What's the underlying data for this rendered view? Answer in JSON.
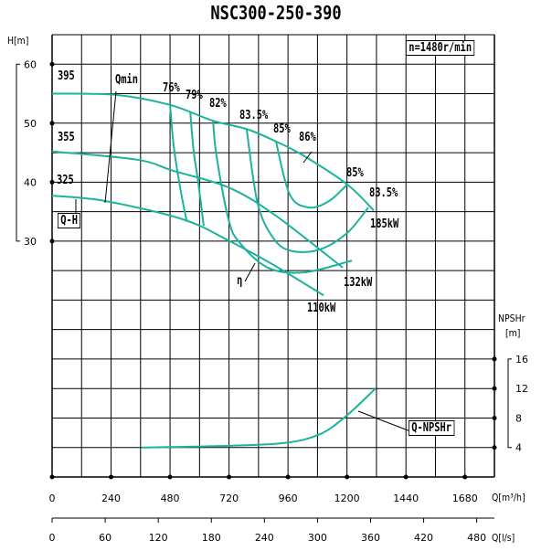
{
  "chart_data": {
    "type": "line",
    "title": "NSC300-250-390",
    "speed_label": "n=1480r/min",
    "colors": {
      "curve": "#1bb39b",
      "grid": "#000000"
    },
    "grid": true,
    "x_axis": {
      "label": "Q[m³/h]",
      "range": [
        0,
        1800
      ],
      "ticks": [
        "0",
        "240",
        "480",
        "720",
        "960",
        "1200",
        "1440",
        "1680"
      ]
    },
    "x2_axis": {
      "label": "Q[l/s]",
      "range": [
        0,
        500
      ],
      "ticks": [
        "0",
        "60",
        "120",
        "180",
        "240",
        "300",
        "360",
        "420",
        "480"
      ]
    },
    "y_axis": {
      "label": "H[m]",
      "range": [
        -10,
        65
      ],
      "ticks": [
        "60",
        "50",
        "40",
        "30"
      ]
    },
    "y2_axis": {
      "label": "NPSHr",
      "unit": "[m]",
      "range": [
        0,
        60
      ],
      "ticks": [
        "16",
        "12",
        "8",
        "4"
      ]
    },
    "qh_label": "Q-H",
    "npsh_label": "Q-NPSHr",
    "qmin_label": "Qmin",
    "eta_label": "η",
    "head_curves": [
      {
        "name": "395",
        "power": "185kW",
        "q": [
          0,
          260,
          480,
          655,
          792,
          911,
          1023,
          1201,
          1309
        ],
        "h": [
          55,
          54.8,
          53.1,
          50.4,
          49,
          46.9,
          44.5,
          39.6,
          35.2
        ]
      },
      {
        "name": "355",
        "power": "132kW",
        "q": [
          0,
          346,
          495,
          718,
          904,
          1183
        ],
        "h": [
          45.2,
          43.8,
          41.9,
          39.1,
          34.5,
          25.5
        ]
      },
      {
        "name": "325",
        "power": "110kW",
        "q": [
          0,
          216,
          532,
          718,
          904,
          1105
        ],
        "h": [
          37.7,
          36.8,
          33.7,
          30.1,
          25.9,
          20.8
        ]
      }
    ],
    "efficiency_curves": [
      {
        "name": "76%",
        "q": [
          480,
          495,
          521,
          547
        ],
        "h": [
          53.1,
          46.1,
          39.1,
          33.5
        ]
      },
      {
        "name": "79%",
        "q": [
          562,
          576,
          595,
          617
        ],
        "h": [
          52,
          45.3,
          39.9,
          32.6
        ]
      },
      {
        "name": "82%",
        "q": [
          655,
          669,
          718,
          762,
          878,
          1026,
          1220
        ],
        "h": [
          50.4,
          44.5,
          33.7,
          29.8,
          25.5,
          24.7,
          26.7
        ]
      },
      {
        "name": "83.5%",
        "q": [
          792,
          837,
          904,
          978,
          1090,
          1201,
          1287
        ],
        "h": [
          48.9,
          36.3,
          30.3,
          28.3,
          28.6,
          31.4,
          35.7
        ]
      },
      {
        "name": "85%",
        "q": [
          911,
          967,
          1045,
          1127,
          1201
        ],
        "h": [
          46.9,
          37.9,
          35.7,
          36.8,
          39.6
        ]
      }
    ],
    "efficiency_labels": [
      "76%",
      "79%",
      "82%",
      "83.5%",
      "85%",
      "86%",
      "85%",
      "83.5%"
    ],
    "npsh_curve": {
      "q": [
        364,
        680,
        941,
        1090,
        1201,
        1316
      ],
      "npsh": [
        4,
        4.2,
        4.6,
        5.8,
        8.4,
        12
      ]
    }
  }
}
